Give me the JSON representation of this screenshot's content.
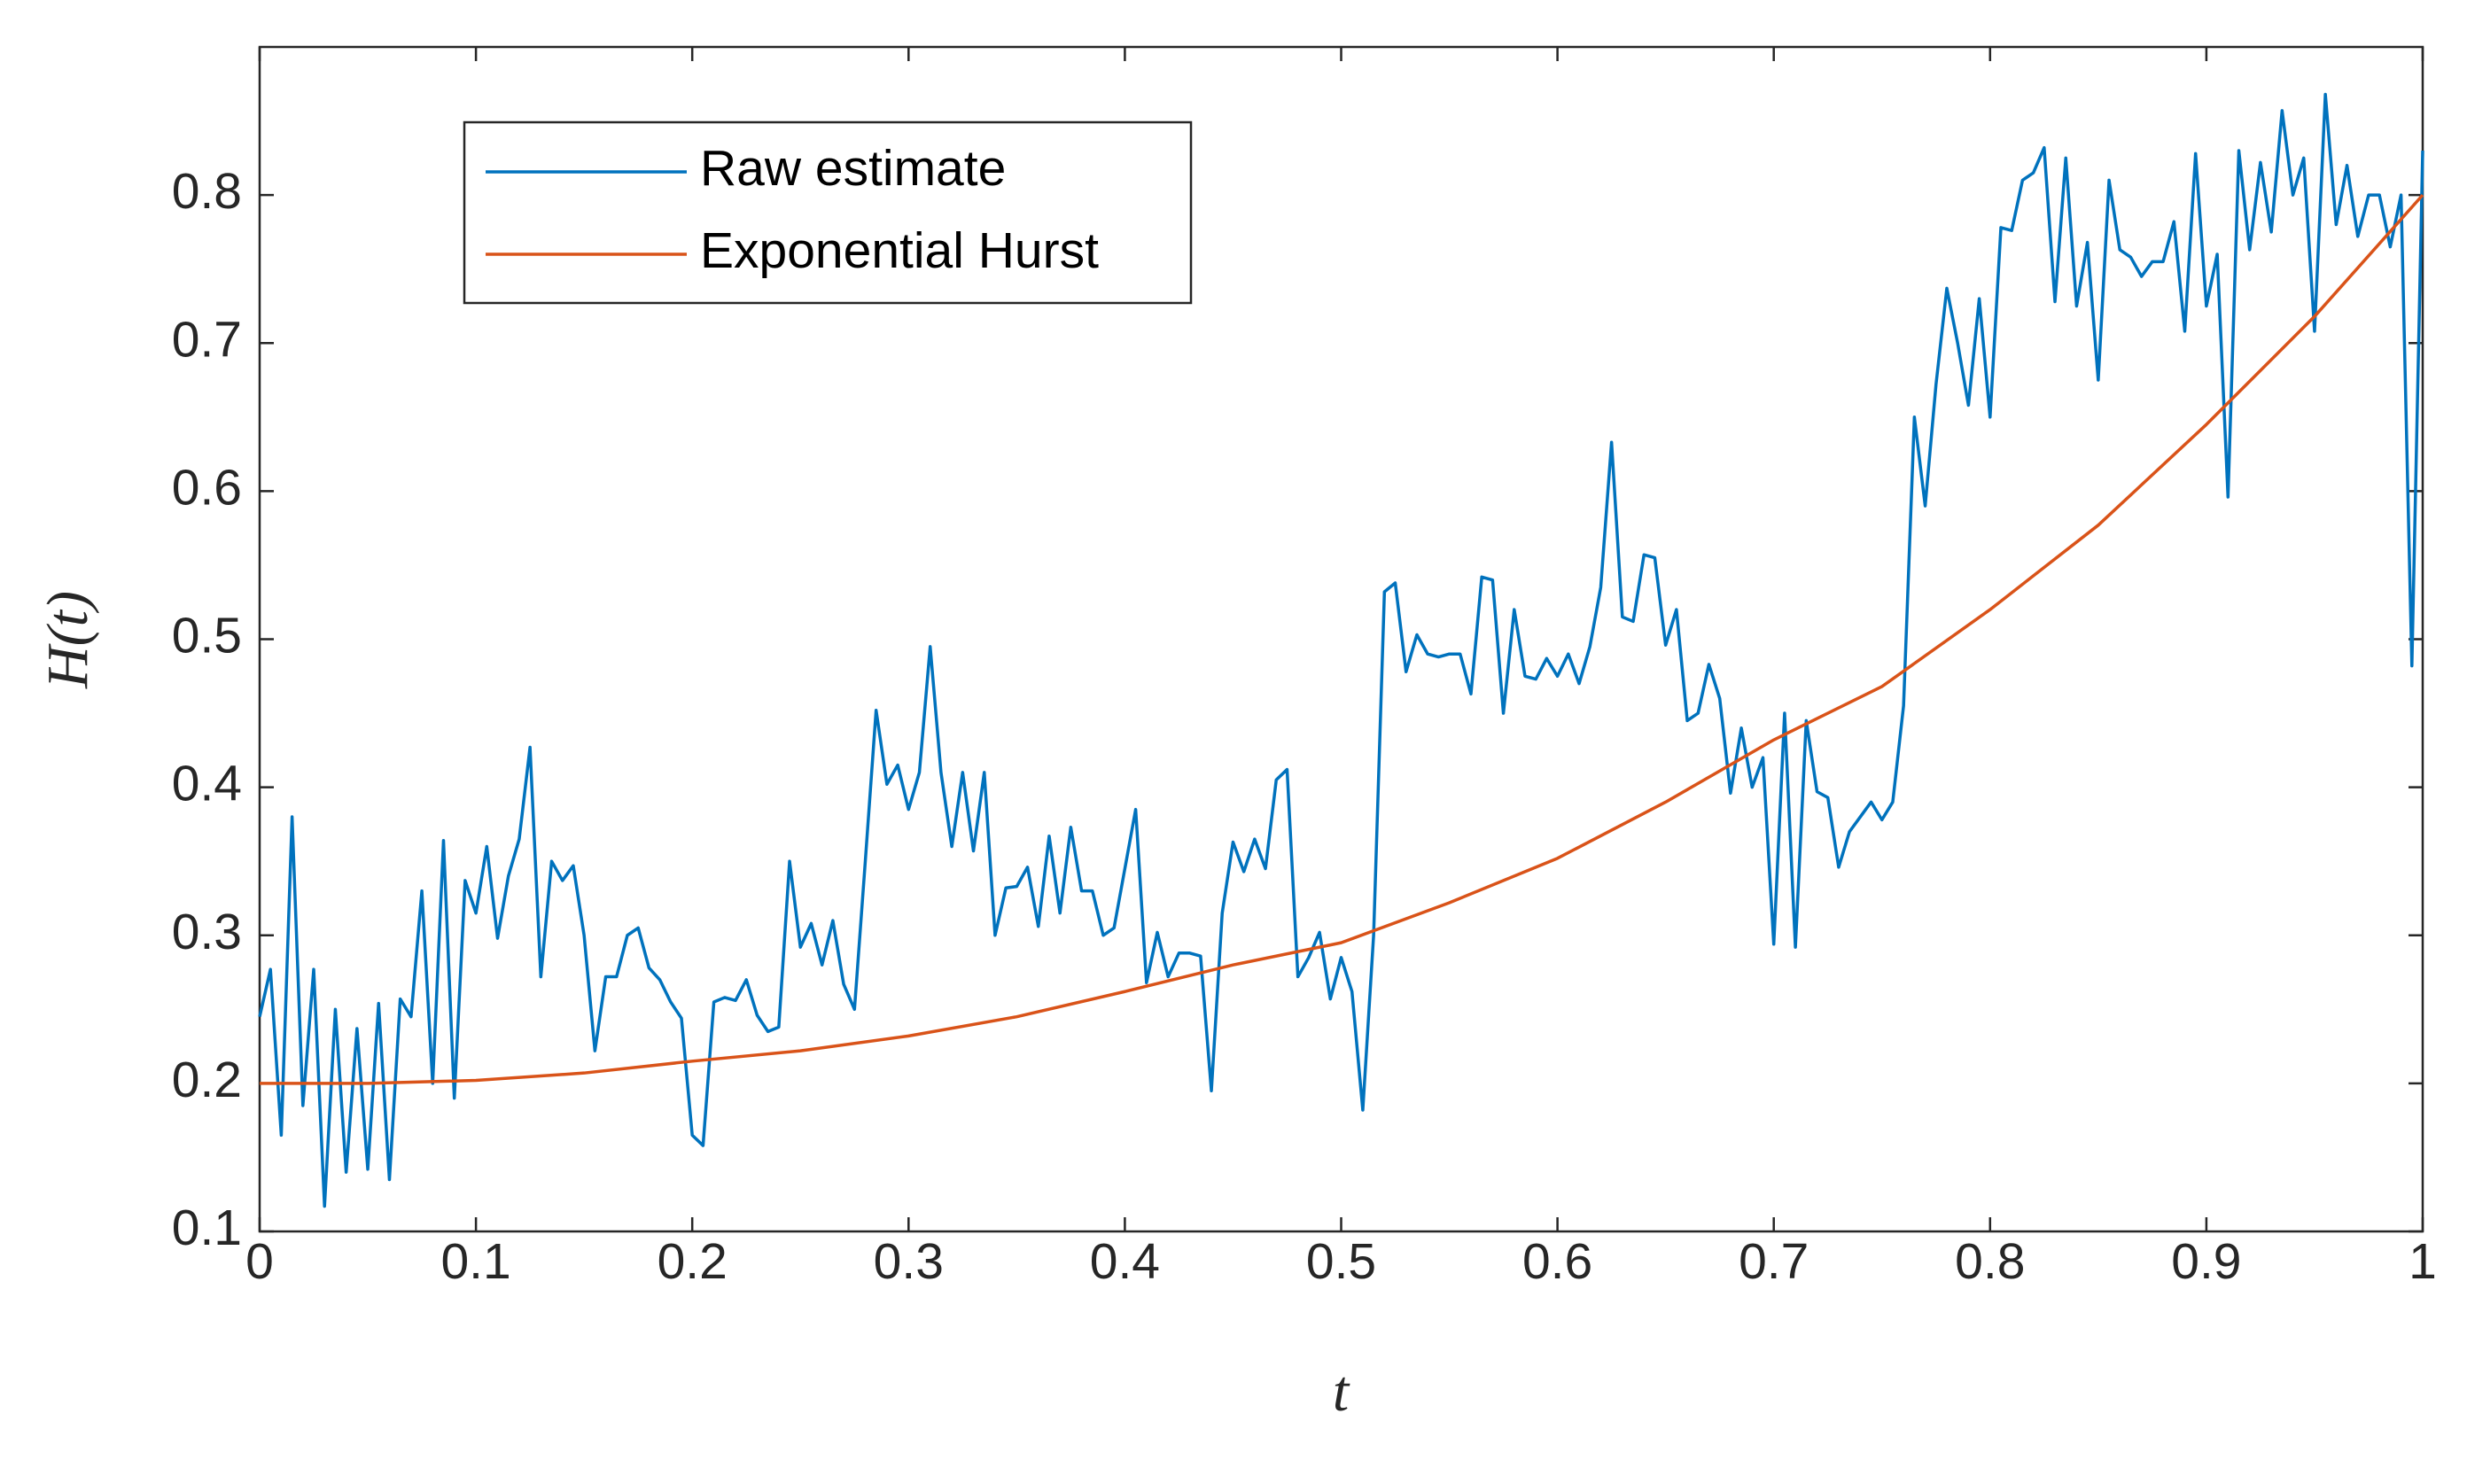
{
  "chart_data": {
    "type": "line",
    "xlabel": "t",
    "ylabel": "H(t)",
    "xlim": [
      0,
      1
    ],
    "ylim": [
      0.1,
      0.9
    ],
    "xticks": [
      0,
      0.1,
      0.2,
      0.3,
      0.4,
      0.5,
      0.6,
      0.7,
      0.8,
      0.9,
      1
    ],
    "yticks": [
      0.1,
      0.2,
      0.3,
      0.4,
      0.5,
      0.6,
      0.7,
      0.8
    ],
    "legend": "upper left",
    "series": [
      {
        "name": "Raw estimate",
        "color": "#0072bd",
        "x": [
          0,
          0.005,
          0.01,
          0.015,
          0.02,
          0.025,
          0.03,
          0.035,
          0.04,
          0.045,
          0.05,
          0.055,
          0.06,
          0.065,
          0.07,
          0.075,
          0.08,
          0.085,
          0.09,
          0.095,
          0.1,
          0.105,
          0.11,
          0.115,
          0.12,
          0.125,
          0.13,
          0.135,
          0.14,
          0.145,
          0.15,
          0.155,
          0.16,
          0.165,
          0.17,
          0.175,
          0.18,
          0.185,
          0.19,
          0.195,
          0.2,
          0.205,
          0.21,
          0.215,
          0.22,
          0.225,
          0.23,
          0.235,
          0.24,
          0.245,
          0.25,
          0.255,
          0.26,
          0.265,
          0.27,
          0.275,
          0.28,
          0.285,
          0.29,
          0.295,
          0.3,
          0.305,
          0.31,
          0.315,
          0.32,
          0.325,
          0.33,
          0.335,
          0.34,
          0.345,
          0.35,
          0.355,
          0.36,
          0.365,
          0.37,
          0.375,
          0.38,
          0.385,
          0.39,
          0.395,
          0.4,
          0.405,
          0.41,
          0.415,
          0.42,
          0.425,
          0.43,
          0.435,
          0.44,
          0.445,
          0.45,
          0.455,
          0.46,
          0.465,
          0.47,
          0.475,
          0.48,
          0.485,
          0.49,
          0.495,
          0.5,
          0.505,
          0.51,
          0.515,
          0.52,
          0.525,
          0.53,
          0.535,
          0.54,
          0.545,
          0.55,
          0.555,
          0.56,
          0.565,
          0.57,
          0.575,
          0.58,
          0.585,
          0.59,
          0.595,
          0.6,
          0.605,
          0.61,
          0.615,
          0.62,
          0.625,
          0.63,
          0.635,
          0.64,
          0.645,
          0.65,
          0.655,
          0.66,
          0.665,
          0.67,
          0.675,
          0.68,
          0.685,
          0.69,
          0.695,
          0.7,
          0.705,
          0.71,
          0.715,
          0.72,
          0.725,
          0.73,
          0.735,
          0.74,
          0.745,
          0.75,
          0.755,
          0.76,
          0.765,
          0.77,
          0.775,
          0.78,
          0.785,
          0.79,
          0.795,
          0.8,
          0.805,
          0.81,
          0.815,
          0.82,
          0.825,
          0.83,
          0.835,
          0.84,
          0.845,
          0.85,
          0.855,
          0.86,
          0.865,
          0.87,
          0.875,
          0.88,
          0.885,
          0.89,
          0.895,
          0.9,
          0.905,
          0.91,
          0.915,
          0.92,
          0.925,
          0.93,
          0.935,
          0.94,
          0.945,
          0.95,
          0.955,
          0.96,
          0.965,
          0.97,
          0.975,
          0.98,
          0.985,
          0.99,
          0.995,
          1
        ],
        "values": [
          0.245,
          0.277,
          0.165,
          0.38,
          0.185,
          0.277,
          0.117,
          0.25,
          0.14,
          0.237,
          0.142,
          0.254,
          0.135,
          0.257,
          0.245,
          0.33,
          0.2,
          0.364,
          0.19,
          0.337,
          0.315,
          0.36,
          0.298,
          0.34,
          0.365,
          0.427,
          0.272,
          0.35,
          0.337,
          0.347,
          0.3,
          0.222,
          0.272,
          0.272,
          0.3,
          0.305,
          0.278,
          0.27,
          0.255,
          0.244,
          0.165,
          0.158,
          0.255,
          0.258,
          0.256,
          0.27,
          0.246,
          0.235,
          0.238,
          0.35,
          0.292,
          0.308,
          0.28,
          0.31,
          0.267,
          0.25,
          0.35,
          0.452,
          0.402,
          0.415,
          0.385,
          0.41,
          0.495,
          0.41,
          0.36,
          0.41,
          0.357,
          0.41,
          0.3,
          0.332,
          0.333,
          0.346,
          0.306,
          0.367,
          0.315,
          0.373,
          0.33,
          0.33,
          0.3,
          0.305,
          0.345,
          0.385,
          0.268,
          0.302,
          0.272,
          0.288,
          0.288,
          0.286,
          0.195,
          0.315,
          0.363,
          0.343,
          0.365,
          0.345,
          0.405,
          0.412,
          0.272,
          0.285,
          0.302,
          0.257,
          0.285,
          0.262,
          0.182,
          0.3,
          0.532,
          0.538,
          0.478,
          0.503,
          0.49,
          0.488,
          0.49,
          0.49,
          0.463,
          0.542,
          0.54,
          0.45,
          0.52,
          0.475,
          0.473,
          0.487,
          0.475,
          0.49,
          0.47,
          0.495,
          0.535,
          0.633,
          0.515,
          0.512,
          0.557,
          0.555,
          0.496,
          0.52,
          0.445,
          0.45,
          0.483,
          0.46,
          0.396,
          0.44,
          0.4,
          0.42,
          0.294,
          0.45,
          0.292,
          0.445,
          0.397,
          0.393,
          0.346,
          0.37,
          0.38,
          0.39,
          0.378,
          0.39,
          0.455,
          0.65,
          0.59,
          0.672,
          0.737,
          0.7,
          0.658,
          0.73,
          0.65,
          0.778,
          0.776,
          0.81,
          0.815,
          0.832,
          0.728,
          0.825,
          0.725,
          0.768,
          0.675,
          0.81,
          0.763,
          0.758,
          0.745,
          0.755,
          0.755,
          0.782,
          0.708,
          0.828,
          0.725,
          0.76,
          0.596,
          0.83,
          0.763,
          0.822,
          0.775,
          0.857,
          0.8,
          0.825,
          0.708,
          0.868,
          0.78,
          0.82,
          0.772,
          0.8,
          0.8,
          0.765,
          0.8,
          0.482,
          0.83
        ]
      },
      {
        "name": "Exponential Hurst",
        "color": "#d95319",
        "x": [
          0,
          0.05,
          0.1,
          0.15,
          0.2,
          0.25,
          0.3,
          0.35,
          0.4,
          0.45,
          0.5,
          0.55,
          0.6,
          0.65,
          0.7,
          0.75,
          0.8,
          0.85,
          0.9,
          0.95,
          1
        ],
        "values": [
          0.2,
          0.2,
          0.202,
          0.207,
          0.215,
          0.222,
          0.232,
          0.245,
          0.262,
          0.28,
          0.295,
          0.322,
          0.352,
          0.39,
          0.432,
          0.468,
          0.52,
          0.577,
          0.645,
          0.718,
          0.8
        ]
      }
    ]
  }
}
